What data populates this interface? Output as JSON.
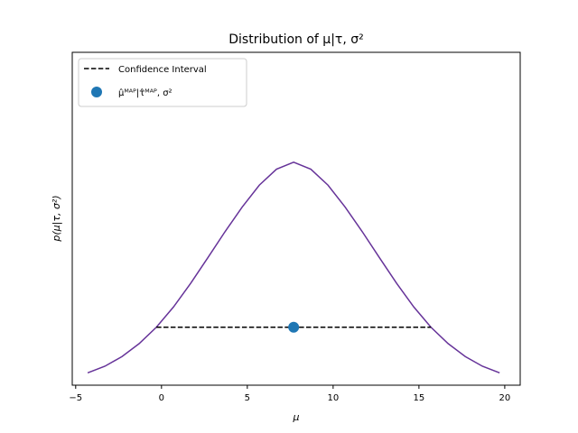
{
  "chart_data": {
    "type": "line",
    "title": "Distribution of μ|τ, σ²",
    "xlabel": "μ",
    "ylabel": "p(μ|τ, σ²)",
    "xlim": [
      -5.2,
      20.9
    ],
    "ylim": [
      0,
      1.0
    ],
    "xticks": [
      -5,
      0,
      5,
      10,
      15,
      20
    ],
    "y_ticks_shown": false,
    "legend_position": "upper-left",
    "colors": {
      "curve": "#663399",
      "interval": "#000000",
      "point": "#1f77b4"
    },
    "series": [
      {
        "style": "curve",
        "x": [
          -4.3,
          -3.3,
          -2.3,
          -1.3,
          -0.3,
          0.7,
          1.7,
          2.7,
          3.7,
          4.7,
          5.7,
          6.7,
          7.7,
          8.7,
          9.7,
          10.7,
          11.7,
          12.7,
          13.7,
          14.7,
          15.7,
          16.7,
          17.7,
          18.7,
          19.7
        ],
        "y": [
          0.037,
          0.057,
          0.086,
          0.125,
          0.174,
          0.235,
          0.306,
          0.383,
          0.461,
          0.535,
          0.601,
          0.649,
          0.67,
          0.649,
          0.601,
          0.535,
          0.461,
          0.383,
          0.306,
          0.235,
          0.174,
          0.125,
          0.086,
          0.057,
          0.037
        ]
      },
      {
        "name": "Confidence Interval",
        "style": "dashed",
        "x": [
          -0.3,
          15.7
        ],
        "y": [
          0.174,
          0.174
        ]
      },
      {
        "name": "μ̂ᴹᴬᴾ|τ̂ᴹᴬᴾ, σ²",
        "style": "point",
        "x": [
          7.7
        ],
        "y": [
          0.174
        ]
      }
    ]
  }
}
